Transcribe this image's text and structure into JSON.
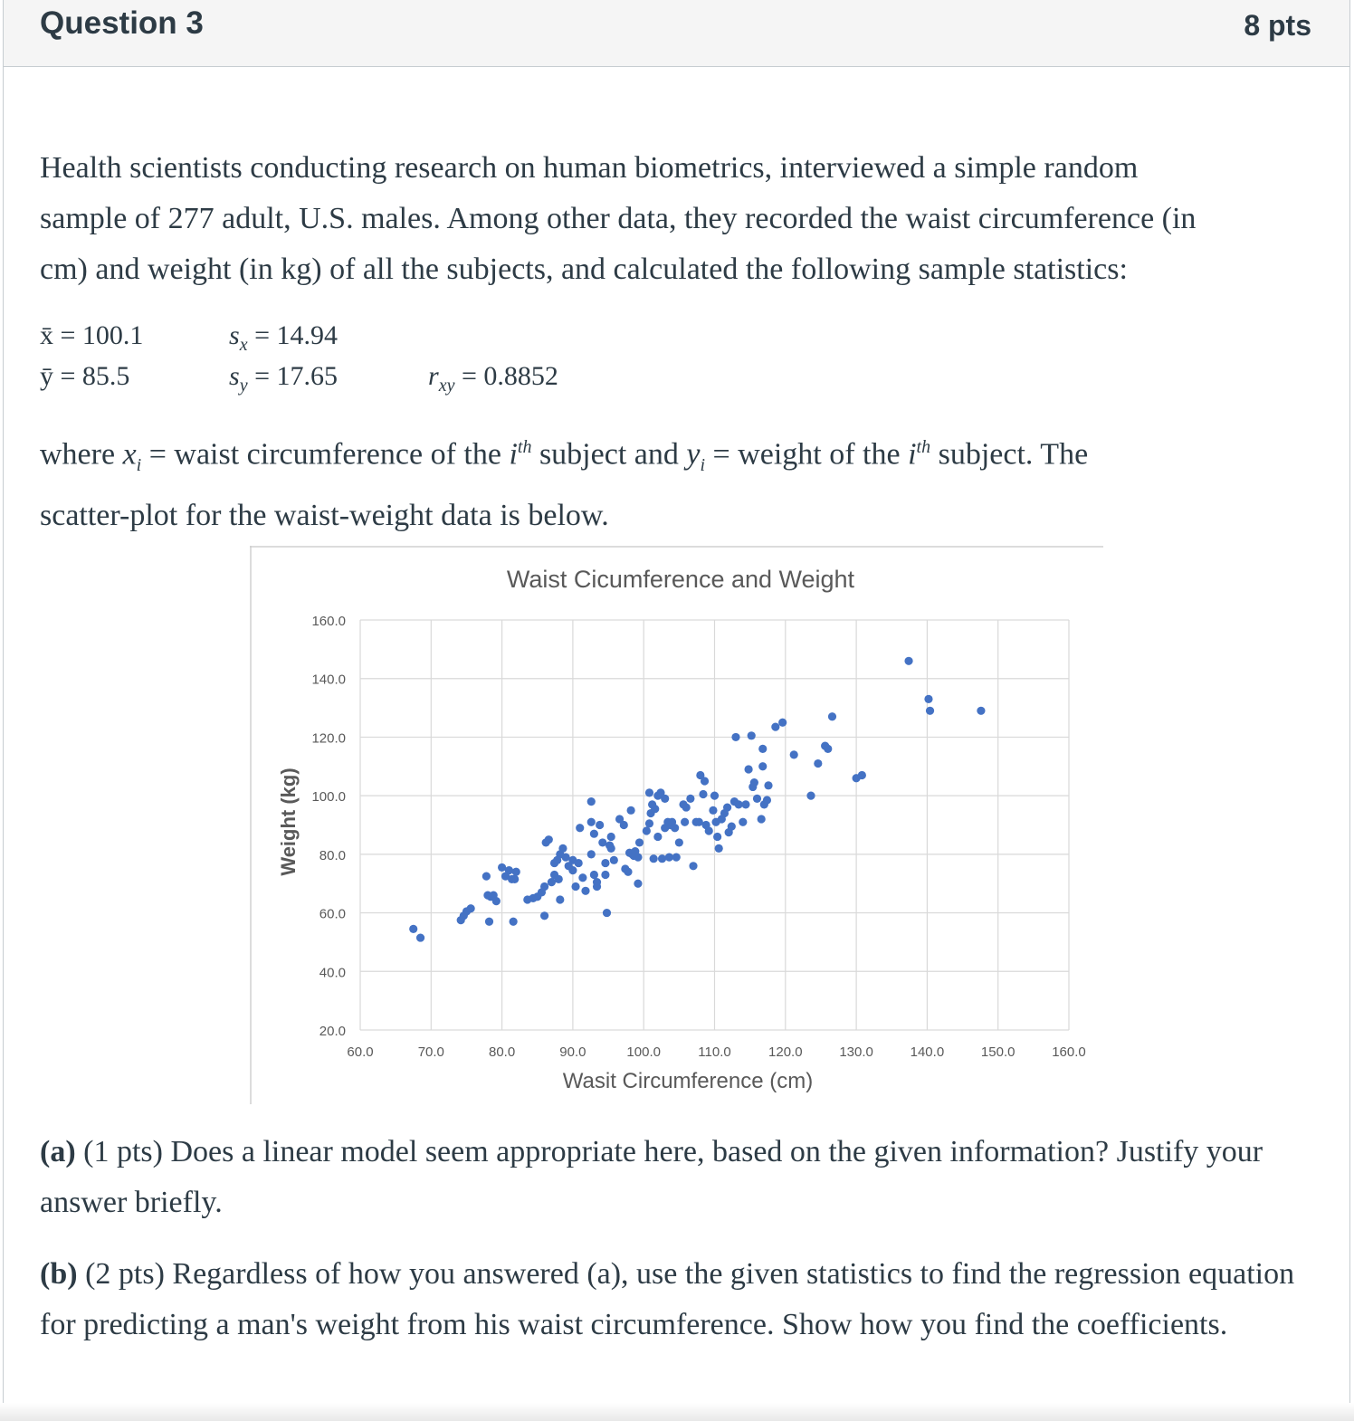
{
  "question": {
    "title": "Question 3",
    "points": "8 pts"
  },
  "intro": {
    "line1": "Health scientists conducting research on human biometrics, interviewed a simple random",
    "line2": "sample of 277 adult, U.S. males. Among other data, they recorded the waist circumference (in",
    "line3": "cm) and weight (in kg) of all the subjects, and calculated the following sample statistics:"
  },
  "stats": {
    "xbar": "x̄ = 100.1",
    "ybar": "ȳ = 85.5",
    "sx_sym": "s",
    "sx_sub": "x",
    "sx_val": " = 14.94",
    "sy_sym": "s",
    "sy_sub": "y",
    "sy_val": " = 17.65",
    "r_sym": "r",
    "r_sub": "xy",
    "r_val": " = 0.8852"
  },
  "where": {
    "p1": "where ",
    "xi": "x",
    "xi_sub": "i",
    "p2": " = waist circumference of the ",
    "i1": "i",
    "th1": "th",
    "p3": " subject and ",
    "yi": "y",
    "yi_sub": "i",
    "p4": " = weight of the ",
    "i2": "i",
    "th2": "th",
    "p5": " subject. The",
    "line2": "scatter-plot for the waist-weight data is below."
  },
  "chart_data": {
    "type": "scatter",
    "title": "Waist Cicumference and Weight",
    "xlabel": "Wasit Circumference  (cm)",
    "ylabel": "Weight  (kg)",
    "xlim": [
      60,
      160
    ],
    "ylim": [
      20,
      160
    ],
    "xticks": [
      "60.0",
      "70.0",
      "80.0",
      "90.0",
      "100.0",
      "110.0",
      "120.0",
      "130.0",
      "140.0",
      "150.0",
      "160.0"
    ],
    "yticks": [
      "20.0",
      "40.0",
      "60.0",
      "80.0",
      "100.0",
      "120.0",
      "140.0",
      "160.0"
    ],
    "grid": true,
    "marker_color": "#4472c4",
    "points": [
      [
        67.5,
        54.5
      ],
      [
        68.5,
        51.5
      ],
      [
        74.2,
        57.5
      ],
      [
        74.6,
        59
      ],
      [
        75,
        60.5
      ],
      [
        75.6,
        61.5
      ],
      [
        77.8,
        72.5
      ],
      [
        78,
        66
      ],
      [
        78.4,
        65.5
      ],
      [
        78.8,
        66
      ],
      [
        79.2,
        64
      ],
      [
        78.2,
        57
      ],
      [
        80,
        75.5
      ],
      [
        80.5,
        72.5
      ],
      [
        81,
        74.5
      ],
      [
        81.4,
        71.5
      ],
      [
        81.8,
        71.5
      ],
      [
        82,
        74
      ],
      [
        81.6,
        57
      ],
      [
        83.6,
        64.5
      ],
      [
        84.4,
        65
      ],
      [
        85,
        65.5
      ],
      [
        85.6,
        67
      ],
      [
        86,
        69
      ],
      [
        86,
        59
      ],
      [
        86.2,
        84
      ],
      [
        86.6,
        85
      ],
      [
        87,
        70.5
      ],
      [
        87.4,
        73
      ],
      [
        87.4,
        77
      ],
      [
        87.8,
        78
      ],
      [
        88,
        71.5
      ],
      [
        88.2,
        80
      ],
      [
        88.6,
        82
      ],
      [
        88.2,
        64.5
      ],
      [
        89,
        79
      ],
      [
        89.4,
        76
      ],
      [
        90,
        74.5
      ],
      [
        90,
        78
      ],
      [
        90.4,
        69
      ],
      [
        90.8,
        77
      ],
      [
        91,
        89
      ],
      [
        91.4,
        72
      ],
      [
        91.8,
        67.5
      ],
      [
        92.6,
        80
      ],
      [
        92.6,
        91
      ],
      [
        92.6,
        98
      ],
      [
        93,
        87
      ],
      [
        93,
        73
      ],
      [
        93.4,
        69
      ],
      [
        93.4,
        70.5
      ],
      [
        93.8,
        90
      ],
      [
        94.2,
        84
      ],
      [
        94.6,
        77
      ],
      [
        94.6,
        73
      ],
      [
        94.8,
        60
      ],
      [
        95.2,
        83
      ],
      [
        95.4,
        82
      ],
      [
        95.4,
        86
      ],
      [
        95.8,
        78
      ],
      [
        96.6,
        92
      ],
      [
        97.2,
        90
      ],
      [
        97.4,
        75
      ],
      [
        97.8,
        74
      ],
      [
        98,
        80.5
      ],
      [
        98.2,
        95
      ],
      [
        98.4,
        80
      ],
      [
        98.6,
        79.5
      ],
      [
        98.8,
        81
      ],
      [
        99.2,
        79
      ],
      [
        99.4,
        84
      ],
      [
        99.2,
        70
      ],
      [
        100.4,
        88
      ],
      [
        100.8,
        90.5
      ],
      [
        100.8,
        101
      ],
      [
        101,
        94
      ],
      [
        101.2,
        97
      ],
      [
        101.6,
        95.5
      ],
      [
        101.4,
        78.5
      ],
      [
        102,
        100
      ],
      [
        102.4,
        101
      ],
      [
        102,
        86
      ],
      [
        102.6,
        78.5
      ],
      [
        103,
        99
      ],
      [
        103,
        89
      ],
      [
        103.4,
        91
      ],
      [
        103.8,
        90
      ],
      [
        104,
        91
      ],
      [
        104.4,
        89
      ],
      [
        103.6,
        79
      ],
      [
        104.6,
        79
      ],
      [
        105,
        84
      ],
      [
        105.6,
        97
      ],
      [
        105.8,
        91
      ],
      [
        106,
        96
      ],
      [
        106.6,
        99
      ],
      [
        107,
        76
      ],
      [
        107.4,
        91
      ],
      [
        107.8,
        91
      ],
      [
        108,
        107
      ],
      [
        108.4,
        100.5
      ],
      [
        108.6,
        105
      ],
      [
        108.8,
        90
      ],
      [
        109.2,
        88
      ],
      [
        109.8,
        95
      ],
      [
        110,
        100
      ],
      [
        110.2,
        91
      ],
      [
        110.4,
        86
      ],
      [
        110.6,
        82
      ],
      [
        111,
        92
      ],
      [
        111.4,
        94
      ],
      [
        111.8,
        96
      ],
      [
        112,
        87.5
      ],
      [
        112.4,
        89.5
      ],
      [
        112.8,
        98
      ],
      [
        113,
        120
      ],
      [
        113.4,
        97
      ],
      [
        114,
        91
      ],
      [
        114.4,
        97
      ],
      [
        114.8,
        109
      ],
      [
        115.2,
        120.5
      ],
      [
        115.4,
        103
      ],
      [
        115.6,
        104.5
      ],
      [
        116,
        99
      ],
      [
        116.6,
        92
      ],
      [
        116.8,
        116
      ],
      [
        116.8,
        110
      ],
      [
        117,
        97
      ],
      [
        117.4,
        98.5
      ],
      [
        117.6,
        103.5
      ],
      [
        118.6,
        123.5
      ],
      [
        119.6,
        125
      ],
      [
        121.2,
        114
      ],
      [
        123.6,
        100
      ],
      [
        124.6,
        111
      ],
      [
        125.6,
        117
      ],
      [
        126,
        116
      ],
      [
        126.6,
        127
      ],
      [
        130,
        106
      ],
      [
        130.8,
        107
      ],
      [
        137.4,
        146
      ],
      [
        140.2,
        133
      ],
      [
        140.4,
        129
      ],
      [
        147.6,
        129
      ]
    ]
  }
}
